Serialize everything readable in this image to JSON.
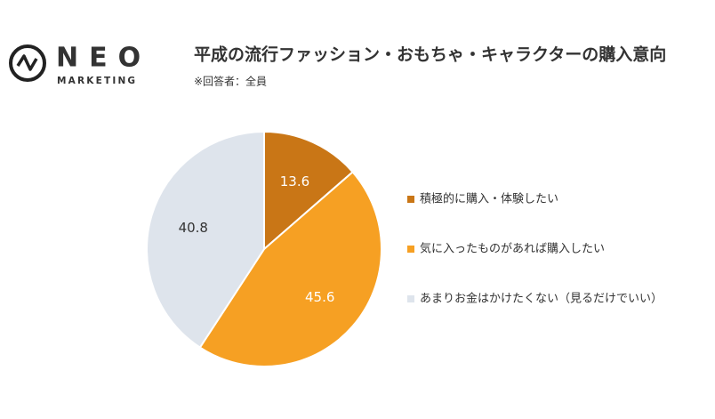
{
  "logo": {
    "name": "NEO",
    "tagline": "MARKETING"
  },
  "chart_data": {
    "type": "pie",
    "title": "平成の流行ファッション・おもちゃ・キャラクターの購入意向",
    "subtitle": "※回答者：全員",
    "categories": [
      "積極的に購入・体験したい",
      "気に入ったものがあれば購入したい",
      "あまりお金はかけたくない（見るだけでいい）"
    ],
    "values": [
      13.6,
      45.6,
      40.8
    ],
    "colors": [
      "#c97616",
      "#f6a023",
      "#dee4ec"
    ],
    "legend": "right"
  }
}
